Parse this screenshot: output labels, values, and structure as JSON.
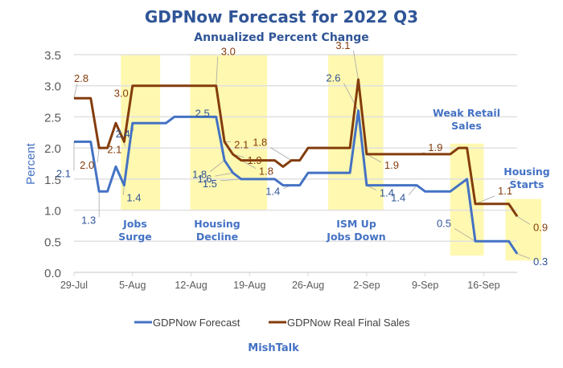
{
  "chart_data": {
    "type": "line",
    "title": "GDPNow Forecast for 2022 Q3",
    "subtitle": "Annualized Percent Change",
    "xlabel": "",
    "ylabel": "Percent",
    "ylim": [
      0,
      3.5
    ],
    "yticks": [
      "0.0",
      "0.5",
      "1.0",
      "1.5",
      "2.0",
      "2.5",
      "3.0",
      "3.5"
    ],
    "xticks": [
      "29-Jul",
      "5-Aug",
      "12-Aug",
      "19-Aug",
      "26-Aug",
      "2-Sep",
      "9-Sep",
      "16-Sep"
    ],
    "x_start": "29-Jul",
    "x_span_days": 53,
    "grid": true,
    "legend_position": "bottom",
    "x_day_offsets": [
      0,
      2,
      3,
      4,
      5,
      6,
      7,
      11,
      12,
      17,
      18,
      19,
      20,
      24,
      25,
      26,
      27,
      28,
      33,
      34,
      35,
      41,
      42,
      45,
      46,
      47,
      48,
      52,
      53
    ],
    "series": [
      {
        "name": "GDPNow Forecast",
        "color": "#4472c4",
        "values": [
          2.1,
          2.1,
          1.3,
          1.3,
          1.7,
          1.4,
          2.4,
          2.4,
          2.5,
          2.5,
          1.8,
          1.6,
          1.5,
          1.5,
          1.4,
          1.4,
          1.4,
          1.6,
          1.6,
          2.6,
          1.4,
          1.4,
          1.3,
          1.3,
          1.4,
          1.5,
          0.5,
          0.5,
          0.3
        ]
      },
      {
        "name": "GDPNow Real Final Sales",
        "color": "#843c0c",
        "values": [
          2.8,
          2.8,
          2.0,
          2.0,
          2.4,
          2.1,
          3.0,
          3.0,
          3.0,
          3.0,
          2.1,
          1.9,
          1.8,
          1.8,
          1.7,
          1.8,
          1.8,
          2.0,
          2.0,
          3.1,
          1.9,
          1.9,
          1.9,
          1.9,
          2.0,
          2.0,
          1.1,
          1.1,
          0.9
        ]
      }
    ],
    "data_labels": [
      {
        "series": 1,
        "day": 0,
        "text": "2.8"
      },
      {
        "series": 0,
        "day": 0,
        "text": "2.1"
      },
      {
        "series": 1,
        "day": 3,
        "text": "2.0"
      },
      {
        "series": 1,
        "day": 6,
        "text": "2.1"
      },
      {
        "series": 0,
        "day": 3,
        "text": "1.3"
      },
      {
        "series": 1,
        "day": 7,
        "text": "3.0"
      },
      {
        "series": 0,
        "day": 7,
        "text": "2.4"
      },
      {
        "series": 0,
        "day": 6,
        "text": "1.4"
      },
      {
        "series": 1,
        "day": 17,
        "text": "3.0"
      },
      {
        "series": 0,
        "day": 17,
        "text": "2.5"
      },
      {
        "series": 1,
        "day": 18,
        "text": "2.1"
      },
      {
        "series": 1,
        "day": 19,
        "text": "1.9"
      },
      {
        "series": 1,
        "day": 20,
        "text": "1.8"
      },
      {
        "series": 0,
        "day": 18,
        "text": "1.8"
      },
      {
        "series": 0,
        "day": 19,
        "text": "1.6"
      },
      {
        "series": 0,
        "day": 20,
        "text": "1.5"
      },
      {
        "series": 1,
        "day": 26,
        "text": "1.8"
      },
      {
        "series": 0,
        "day": 26,
        "text": "1.4"
      },
      {
        "series": 1,
        "day": 34,
        "text": "3.1"
      },
      {
        "series": 0,
        "day": 34,
        "text": "2.6"
      },
      {
        "series": 1,
        "day": 35,
        "text": "1.9"
      },
      {
        "series": 1,
        "day": 41,
        "text": "1.9"
      },
      {
        "series": 0,
        "day": 35,
        "text": "1.4"
      },
      {
        "series": 0,
        "day": 41,
        "text": "1.4"
      },
      {
        "series": 1,
        "day": 48,
        "text": "1.1"
      },
      {
        "series": 0,
        "day": 48,
        "text": "0.5"
      },
      {
        "series": 1,
        "day": 53,
        "text": "0.9"
      },
      {
        "series": 0,
        "day": 53,
        "text": "0.3"
      }
    ],
    "highlight_bands": [
      {
        "from_day": 5.6,
        "to_day": 10.3,
        "y_from": 1.0,
        "y_to": 3.5,
        "label": [
          "Jobs",
          "Surge"
        ]
      },
      {
        "from_day": 13.9,
        "to_day": 23.1,
        "y_from": 1.0,
        "y_to": 3.5,
        "label": [
          "Housing",
          "Decline"
        ]
      },
      {
        "from_day": 30.4,
        "to_day": 37.0,
        "y_from": 1.0,
        "y_to": 3.5,
        "label": [
          "ISM Up",
          "Jobs Down"
        ]
      },
      {
        "from_day": 45.0,
        "to_day": 49.0,
        "y_from": 0.27,
        "y_to": 2.07,
        "label": [
          "Weak Retail",
          "Sales"
        ]
      },
      {
        "from_day": 51.6,
        "to_day": 55.9,
        "y_from": 0.19,
        "y_to": 1.18,
        "label": [
          "Housing",
          "Starts"
        ]
      }
    ],
    "band_color": "#fff8b0"
  },
  "footer": {
    "credit": "MishTalk"
  }
}
